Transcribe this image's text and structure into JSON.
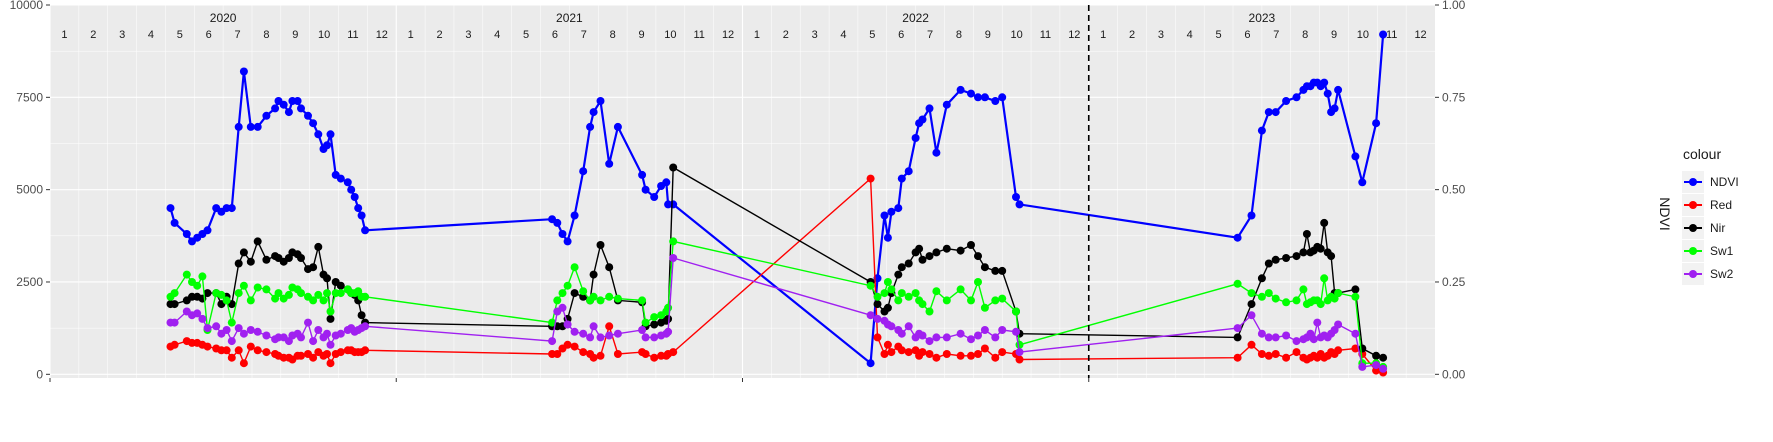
{
  "chart_data": {
    "type": "line",
    "title": "",
    "xlabel": "",
    "ylabel": "",
    "y2label": "NDVI",
    "ylim": [
      -100,
      10000
    ],
    "y2lim": [
      -0.01,
      1.0
    ],
    "x_range": [
      2020.0,
      2024.0
    ],
    "y_ticks": [
      "0",
      "2500",
      "5000",
      "7500",
      "10000"
    ],
    "y_tick_values": [
      0,
      2500,
      5000,
      7500,
      10000
    ],
    "y2_ticks": [
      "0.00",
      "0.25",
      "0.50",
      "0.75",
      "1.00"
    ],
    "y2_tick_values": [
      0,
      0.25,
      0.5,
      0.75,
      1.0
    ],
    "years": [
      "2020",
      "2021",
      "2022",
      "2023"
    ],
    "months": [
      "1",
      "2",
      "3",
      "4",
      "5",
      "6",
      "7",
      "8",
      "9",
      "10",
      "11",
      "12"
    ],
    "vline_x": 2023.0,
    "grid": true,
    "legend": {
      "title": "colour",
      "position": "right"
    },
    "series": [
      {
        "name": "NDVI",
        "axis": "y2",
        "color": "#0000FF",
        "x": [
          2020.348,
          2020.36,
          2020.395,
          2020.41,
          2020.425,
          2020.44,
          2020.455,
          2020.48,
          2020.495,
          2020.51,
          2020.525,
          2020.545,
          2020.56,
          2020.58,
          2020.6,
          2020.625,
          2020.65,
          2020.66,
          2020.675,
          2020.69,
          2020.7,
          2020.715,
          2020.725,
          2020.745,
          2020.76,
          2020.775,
          2020.79,
          2020.8,
          2020.81,
          2020.825,
          2020.84,
          2020.86,
          2020.87,
          2020.88,
          2020.89,
          2020.9,
          2020.91,
          2021.45,
          2021.465,
          2021.48,
          2021.495,
          2021.515,
          2021.54,
          2021.56,
          2021.57,
          2021.59,
          2021.615,
          2021.64,
          2021.71,
          2021.72,
          2021.745,
          2021.765,
          2021.78,
          2021.785,
          2021.8,
          2022.37,
          2022.39,
          2022.41,
          2022.42,
          2022.43,
          2022.45,
          2022.46,
          2022.48,
          2022.5,
          2022.51,
          2022.52,
          2022.54,
          2022.56,
          2022.59,
          2022.63,
          2022.66,
          2022.68,
          2022.7,
          2022.73,
          2022.75,
          2022.79,
          2022.8,
          2023.43,
          2023.47,
          2023.5,
          2023.52,
          2023.54,
          2023.57,
          2023.6,
          2023.62,
          2023.63,
          2023.64,
          2023.65,
          2023.66,
          2023.67,
          2023.68,
          2023.69,
          2023.7,
          2023.71,
          2023.72,
          2023.77,
          2023.79,
          2023.83,
          2023.85
        ],
        "y": [
          0.45,
          0.41,
          0.38,
          0.36,
          0.37,
          0.38,
          0.39,
          0.45,
          0.44,
          0.45,
          0.45,
          0.67,
          0.82,
          0.67,
          0.67,
          0.7,
          0.72,
          0.74,
          0.73,
          0.71,
          0.74,
          0.74,
          0.72,
          0.7,
          0.68,
          0.65,
          0.61,
          0.62,
          0.65,
          0.54,
          0.53,
          0.52,
          0.5,
          0.48,
          0.45,
          0.43,
          0.39,
          0.42,
          0.41,
          0.38,
          0.36,
          0.43,
          0.55,
          0.67,
          0.71,
          0.74,
          0.57,
          0.67,
          0.54,
          0.5,
          0.48,
          0.51,
          0.52,
          0.46,
          0.46,
          0.03,
          0.26,
          0.43,
          0.37,
          0.44,
          0.45,
          0.53,
          0.55,
          0.64,
          0.68,
          0.69,
          0.72,
          0.6,
          0.73,
          0.77,
          0.76,
          0.75,
          0.75,
          0.74,
          0.75,
          0.48,
          0.46,
          0.37,
          0.43,
          0.66,
          0.71,
          0.71,
          0.74,
          0.75,
          0.77,
          0.78,
          0.78,
          0.79,
          0.79,
          0.78,
          0.79,
          0.76,
          0.71,
          0.72,
          0.77,
          0.59,
          0.52,
          0.68,
          0.92
        ]
      },
      {
        "name": "Red",
        "axis": "y",
        "color": "#FF0000",
        "x": [
          2020.348,
          2020.36,
          2020.395,
          2020.41,
          2020.425,
          2020.44,
          2020.455,
          2020.48,
          2020.495,
          2020.51,
          2020.525,
          2020.545,
          2020.56,
          2020.58,
          2020.6,
          2020.625,
          2020.65,
          2020.66,
          2020.675,
          2020.69,
          2020.7,
          2020.715,
          2020.725,
          2020.745,
          2020.76,
          2020.775,
          2020.79,
          2020.8,
          2020.81,
          2020.825,
          2020.84,
          2020.86,
          2020.87,
          2020.88,
          2020.89,
          2020.9,
          2020.91,
          2021.45,
          2021.465,
          2021.48,
          2021.495,
          2021.515,
          2021.54,
          2021.56,
          2021.57,
          2021.59,
          2021.615,
          2021.64,
          2021.71,
          2021.72,
          2021.745,
          2021.765,
          2021.78,
          2021.785,
          2021.8,
          2022.37,
          2022.39,
          2022.41,
          2022.42,
          2022.43,
          2022.45,
          2022.46,
          2022.48,
          2022.5,
          2022.51,
          2022.52,
          2022.54,
          2022.56,
          2022.59,
          2022.63,
          2022.66,
          2022.68,
          2022.7,
          2022.73,
          2022.75,
          2022.79,
          2022.8,
          2023.43,
          2023.47,
          2023.5,
          2023.52,
          2023.54,
          2023.57,
          2023.6,
          2023.62,
          2023.63,
          2023.64,
          2023.65,
          2023.66,
          2023.67,
          2023.68,
          2023.69,
          2023.7,
          2023.71,
          2023.72,
          2023.77,
          2023.79,
          2023.83,
          2023.85
        ],
        "y": [
          750,
          800,
          900,
          850,
          850,
          800,
          750,
          700,
          650,
          650,
          450,
          650,
          300,
          750,
          650,
          600,
          550,
          500,
          450,
          450,
          400,
          500,
          500,
          550,
          450,
          600,
          500,
          550,
          300,
          550,
          600,
          650,
          650,
          600,
          600,
          600,
          650,
          550,
          550,
          700,
          800,
          750,
          600,
          550,
          450,
          500,
          1300,
          550,
          600,
          550,
          450,
          500,
          500,
          550,
          600,
          5300,
          1000,
          550,
          800,
          600,
          750,
          650,
          600,
          650,
          500,
          600,
          550,
          450,
          550,
          500,
          500,
          550,
          700,
          450,
          600,
          550,
          400,
          450,
          800,
          550,
          500,
          550,
          450,
          600,
          450,
          400,
          450,
          500,
          450,
          550,
          450,
          500,
          600,
          550,
          650,
          700,
          550,
          100,
          50
        ]
      },
      {
        "name": "Nir",
        "axis": "y",
        "color": "#000000",
        "x": [
          2020.348,
          2020.36,
          2020.395,
          2020.41,
          2020.425,
          2020.44,
          2020.455,
          2020.48,
          2020.495,
          2020.51,
          2020.525,
          2020.545,
          2020.56,
          2020.58,
          2020.6,
          2020.625,
          2020.65,
          2020.66,
          2020.675,
          2020.69,
          2020.7,
          2020.715,
          2020.725,
          2020.745,
          2020.76,
          2020.775,
          2020.79,
          2020.8,
          2020.81,
          2020.825,
          2020.84,
          2020.86,
          2020.87,
          2020.88,
          2020.89,
          2020.9,
          2020.91,
          2021.45,
          2021.465,
          2021.48,
          2021.495,
          2021.515,
          2021.54,
          2021.56,
          2021.57,
          2021.59,
          2021.615,
          2021.64,
          2021.71,
          2021.72,
          2021.745,
          2021.765,
          2021.78,
          2021.785,
          2021.8,
          2022.37,
          2022.39,
          2022.41,
          2022.42,
          2022.43,
          2022.45,
          2022.46,
          2022.48,
          2022.5,
          2022.51,
          2022.52,
          2022.54,
          2022.56,
          2022.59,
          2022.63,
          2022.66,
          2022.68,
          2022.7,
          2022.73,
          2022.75,
          2022.79,
          2022.8,
          2023.43,
          2023.47,
          2023.5,
          2023.52,
          2023.54,
          2023.57,
          2023.6,
          2023.62,
          2023.63,
          2023.64,
          2023.65,
          2023.66,
          2023.67,
          2023.68,
          2023.69,
          2023.7,
          2023.71,
          2023.72,
          2023.77,
          2023.79,
          2023.83,
          2023.85
        ],
        "y": [
          1900,
          1900,
          2000,
          2100,
          2100,
          2050,
          2200,
          2200,
          1900,
          2100,
          1900,
          3000,
          3300,
          3050,
          3600,
          3100,
          3200,
          3150,
          3050,
          3150,
          3300,
          3250,
          3150,
          2850,
          2900,
          3450,
          2700,
          2600,
          1500,
          2500,
          2400,
          2300,
          2200,
          2150,
          2000,
          1600,
          1400,
          1300,
          1300,
          1300,
          1500,
          2200,
          2100,
          2000,
          2700,
          3500,
          2900,
          2000,
          1950,
          1300,
          1350,
          1400,
          1450,
          1500,
          5600,
          2500,
          1900,
          1700,
          1800,
          2200,
          2700,
          2900,
          3000,
          3300,
          3400,
          3100,
          3200,
          3300,
          3400,
          3350,
          3500,
          3200,
          2900,
          2800,
          2800,
          1700,
          1100,
          1000,
          1900,
          2600,
          3000,
          3100,
          3150,
          3200,
          3300,
          3800,
          3300,
          3350,
          3450,
          3400,
          4100,
          3300,
          3200,
          2200,
          2200,
          2300,
          700,
          500,
          450
        ]
      },
      {
        "name": "Sw1",
        "axis": "y",
        "color": "#00FF00",
        "x": [
          2020.348,
          2020.36,
          2020.395,
          2020.41,
          2020.425,
          2020.44,
          2020.455,
          2020.48,
          2020.495,
          2020.51,
          2020.525,
          2020.545,
          2020.56,
          2020.58,
          2020.6,
          2020.625,
          2020.65,
          2020.66,
          2020.675,
          2020.69,
          2020.7,
          2020.715,
          2020.725,
          2020.745,
          2020.76,
          2020.775,
          2020.79,
          2020.8,
          2020.81,
          2020.825,
          2020.84,
          2020.86,
          2020.87,
          2020.88,
          2020.89,
          2020.9,
          2020.91,
          2021.45,
          2021.465,
          2021.48,
          2021.495,
          2021.515,
          2021.54,
          2021.56,
          2021.57,
          2021.59,
          2021.615,
          2021.64,
          2021.71,
          2021.72,
          2021.745,
          2021.765,
          2021.78,
          2021.785,
          2021.8,
          2022.37,
          2022.39,
          2022.41,
          2022.42,
          2022.43,
          2022.45,
          2022.46,
          2022.48,
          2022.5,
          2022.51,
          2022.52,
          2022.54,
          2022.56,
          2022.59,
          2022.63,
          2022.66,
          2022.68,
          2022.7,
          2022.73,
          2022.75,
          2022.79,
          2022.8,
          2023.43,
          2023.47,
          2023.5,
          2023.52,
          2023.54,
          2023.57,
          2023.6,
          2023.62,
          2023.63,
          2023.64,
          2023.65,
          2023.66,
          2023.67,
          2023.68,
          2023.69,
          2023.7,
          2023.71,
          2023.72,
          2023.77,
          2023.79,
          2023.83,
          2023.85
        ],
        "y": [
          2100,
          2200,
          2700,
          2500,
          2400,
          2650,
          1200,
          2200,
          2150,
          2000,
          1400,
          2200,
          2400,
          2000,
          2350,
          2300,
          2050,
          2200,
          2050,
          2150,
          2350,
          2300,
          2200,
          2100,
          2000,
          2150,
          2000,
          2200,
          1700,
          2200,
          2200,
          2300,
          2200,
          2200,
          2250,
          2100,
          2100,
          1400,
          2000,
          2200,
          2400,
          2900,
          2250,
          2000,
          2100,
          2000,
          2100,
          2050,
          2000,
          1400,
          1550,
          1600,
          1700,
          1800,
          3600,
          2400,
          2100,
          2200,
          2500,
          2300,
          2000,
          2200,
          2100,
          2200,
          2000,
          1900,
          1700,
          2250,
          2000,
          2300,
          2000,
          2500,
          1800,
          2000,
          2050,
          1700,
          800,
          2450,
          2200,
          2100,
          2200,
          2050,
          1950,
          2000,
          2300,
          1900,
          1950,
          2000,
          2000,
          1900,
          2600,
          2000,
          2100,
          2050,
          2200,
          2100,
          300,
          300,
          200
        ]
      },
      {
        "name": "Sw2",
        "axis": "y",
        "color": "#A020F0",
        "x": [
          2020.348,
          2020.36,
          2020.395,
          2020.41,
          2020.425,
          2020.44,
          2020.455,
          2020.48,
          2020.495,
          2020.51,
          2020.525,
          2020.545,
          2020.56,
          2020.58,
          2020.6,
          2020.625,
          2020.65,
          2020.66,
          2020.675,
          2020.69,
          2020.7,
          2020.715,
          2020.725,
          2020.745,
          2020.76,
          2020.775,
          2020.79,
          2020.8,
          2020.81,
          2020.825,
          2020.84,
          2020.86,
          2020.87,
          2020.88,
          2020.89,
          2020.9,
          2020.91,
          2021.45,
          2021.465,
          2021.48,
          2021.495,
          2021.515,
          2021.54,
          2021.56,
          2021.57,
          2021.59,
          2021.615,
          2021.64,
          2021.71,
          2021.72,
          2021.745,
          2021.765,
          2021.78,
          2021.785,
          2021.8,
          2022.37,
          2022.39,
          2022.41,
          2022.42,
          2022.43,
          2022.45,
          2022.46,
          2022.48,
          2022.5,
          2022.51,
          2022.52,
          2022.54,
          2022.56,
          2022.59,
          2022.63,
          2022.66,
          2022.68,
          2022.7,
          2022.73,
          2022.75,
          2022.79,
          2022.8,
          2023.43,
          2023.47,
          2023.5,
          2023.52,
          2023.54,
          2023.57,
          2023.6,
          2023.62,
          2023.63,
          2023.64,
          2023.65,
          2023.66,
          2023.67,
          2023.68,
          2023.69,
          2023.7,
          2023.71,
          2023.72,
          2023.77,
          2023.79,
          2023.83,
          2023.85
        ],
        "y": [
          1400,
          1400,
          1700,
          1600,
          1650,
          1500,
          1250,
          1300,
          1100,
          1200,
          900,
          1250,
          1100,
          1200,
          1150,
          1050,
          950,
          1000,
          1000,
          900,
          1050,
          1100,
          1000,
          1400,
          900,
          1200,
          1000,
          1100,
          800,
          1050,
          1100,
          1200,
          1250,
          1150,
          1200,
          1250,
          1300,
          900,
          1700,
          1800,
          1350,
          1150,
          1100,
          1000,
          1300,
          1000,
          1050,
          1100,
          1200,
          1000,
          1000,
          1050,
          1100,
          1150,
          3150,
          1600,
          1500,
          1450,
          1350,
          1300,
          1200,
          1100,
          1300,
          1000,
          1100,
          1050,
          900,
          1000,
          1000,
          1100,
          950,
          1050,
          1200,
          1000,
          1200,
          1150,
          600,
          1250,
          1600,
          1100,
          1000,
          1000,
          1050,
          900,
          950,
          1000,
          1100,
          950,
          1400,
          1000,
          1050,
          1000,
          1100,
          1200,
          1350,
          1100,
          200,
          250,
          150
        ]
      }
    ]
  }
}
